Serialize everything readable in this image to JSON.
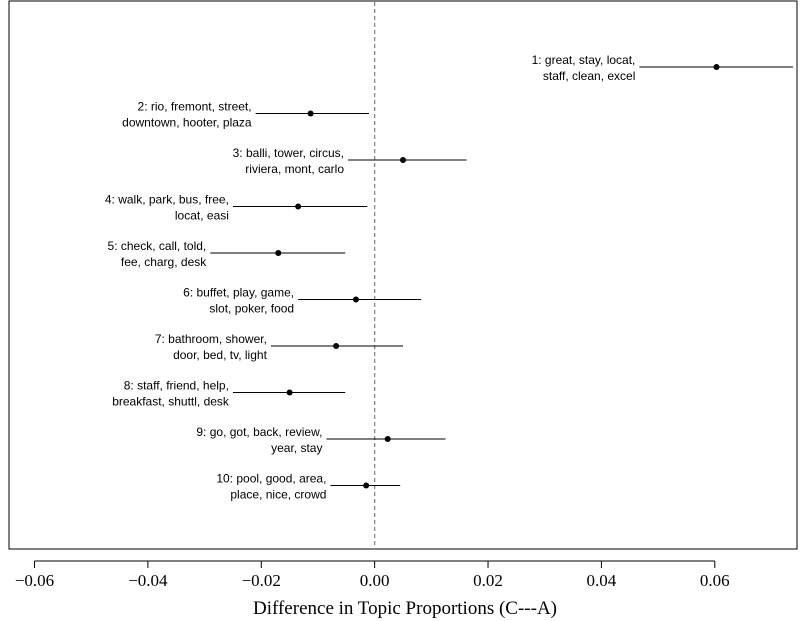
{
  "chart_data": {
    "type": "scatter",
    "subtype": "point-range",
    "xlabel": "Difference in Topic Proportions (C---A)",
    "xlim": [
      -0.0645,
      0.0745
    ],
    "xticks": [
      -0.06,
      -0.04,
      -0.02,
      0.0,
      0.02,
      0.04,
      0.06
    ],
    "xtick_labels": [
      "−0.06",
      "−0.04",
      "−0.02",
      "0.00",
      "0.02",
      "0.04",
      "0.06"
    ],
    "reference_line": {
      "x": 0.0,
      "style": "dashed",
      "color": "#888888"
    },
    "grid": false,
    "points": [
      {
        "label_lines": [
          "1: great, stay, locat,",
          "staff, clean, excel"
        ],
        "estimate": 0.0603,
        "ci": [
          0.0467,
          0.0738
        ]
      },
      {
        "label_lines": [
          "2: rio, fremont, street,",
          "downtown, hooter, plaza"
        ],
        "estimate": -0.0113,
        "ci": [
          -0.021,
          -0.001
        ]
      },
      {
        "label_lines": [
          "3: balli, tower, circus,",
          "riviera, mont, carlo"
        ],
        "estimate": 0.005,
        "ci": [
          -0.0047,
          0.0162
        ]
      },
      {
        "label_lines": [
          "4: walk, park, bus, free,",
          "locat, easi"
        ],
        "estimate": -0.0135,
        "ci": [
          -0.025,
          -0.0013
        ]
      },
      {
        "label_lines": [
          "5: check, call, told,",
          "fee, charg, desk"
        ],
        "estimate": -0.017,
        "ci": [
          -0.029,
          -0.0052
        ]
      },
      {
        "label_lines": [
          "6: buffet, play, game,",
          "slot, poker, food"
        ],
        "estimate": -0.0033,
        "ci": [
          -0.0135,
          0.0082
        ]
      },
      {
        "label_lines": [
          "7: bathroom, shower,",
          "door, bed, tv, light"
        ],
        "estimate": -0.0068,
        "ci": [
          -0.0183,
          0.005
        ]
      },
      {
        "label_lines": [
          "8: staff, friend, help,",
          "breakfast, shuttl, desk"
        ],
        "estimate": -0.015,
        "ci": [
          -0.025,
          -0.0052
        ]
      },
      {
        "label_lines": [
          "9: go, got, back, review,",
          "year, stay"
        ],
        "estimate": 0.0023,
        "ci": [
          -0.0085,
          0.0125
        ]
      },
      {
        "label_lines": [
          "10: pool, good, area,",
          "place, nice, crowd"
        ],
        "estimate": -0.0015,
        "ci": [
          -0.0078,
          0.0045
        ]
      }
    ],
    "colors": {
      "line": "#000000",
      "point": "#000000",
      "reference": "#888888"
    }
  }
}
